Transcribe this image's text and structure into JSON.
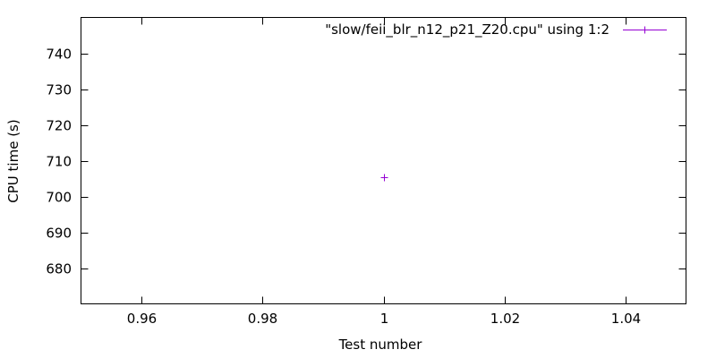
{
  "chart_data": {
    "type": "scatter",
    "title": "",
    "xlabel": "Test number",
    "ylabel": "CPU time (s)",
    "xlim": [
      0.95,
      1.05
    ],
    "ylim": [
      670,
      750
    ],
    "xticks": [
      0.96,
      0.98,
      1,
      1.02,
      1.04
    ],
    "xtick_labels": [
      "0.96",
      "0.98",
      "1",
      "1.02",
      "1.04"
    ],
    "yticks": [
      680,
      690,
      700,
      710,
      720,
      730,
      740
    ],
    "ytick_labels": [
      "680",
      "690",
      "700",
      "710",
      "720",
      "730",
      "740"
    ],
    "grid": false,
    "legend_position": "top-right",
    "series": [
      {
        "name": "\"slow/feii_blr_n12_p21_Z20.cpu\" using 1:2",
        "color": "#9400d3",
        "marker": "plus",
        "points": [
          {
            "x": 1,
            "y": 705.5
          }
        ]
      }
    ]
  }
}
